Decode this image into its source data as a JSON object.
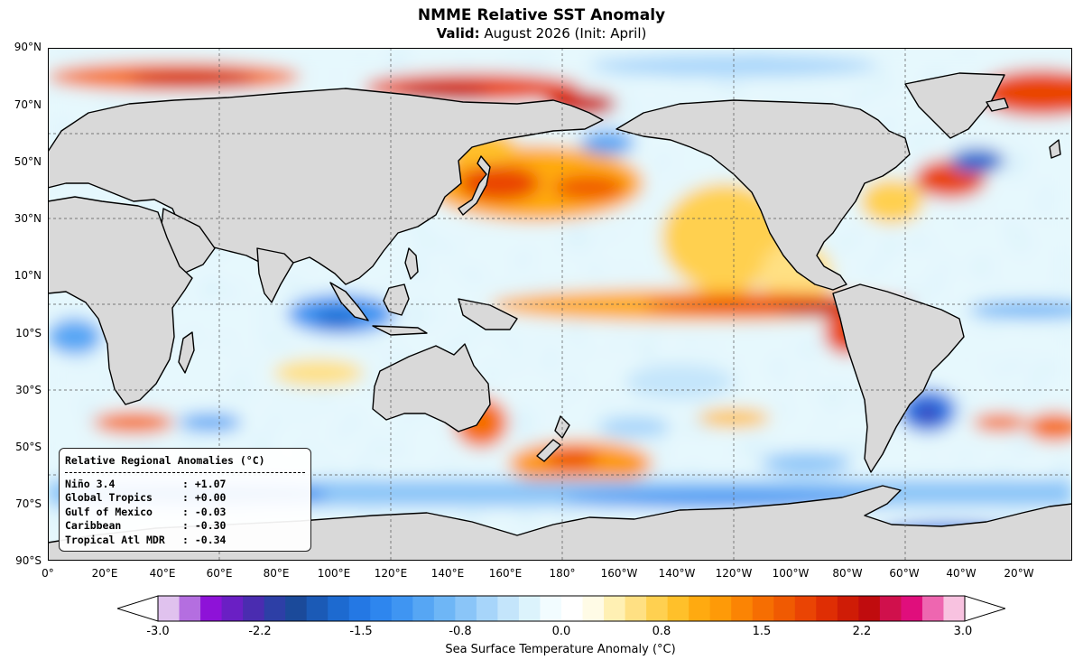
{
  "title": "NMME Relative SST Anomaly",
  "subtitle_label": "Valid:",
  "subtitle_text": "August 2026 (Init: April)",
  "y_ticks": [
    "90°N",
    "70°N",
    "50°N",
    "30°N",
    "10°N",
    "10°S",
    "30°S",
    "50°S",
    "70°S",
    "90°S"
  ],
  "x_ticks": [
    "0°",
    "20°E",
    "40°E",
    "60°E",
    "80°E",
    "100°E",
    "120°E",
    "140°E",
    "160°E",
    "180°",
    "160°W",
    "140°W",
    "120°W",
    "100°W",
    "80°W",
    "60°W",
    "40°W",
    "20°W"
  ],
  "regional": {
    "title": "Relative Regional Anomalies (°C)",
    "rows": [
      {
        "name": "Niño 3.4",
        "value": "+1.07"
      },
      {
        "name": "Global Tropics",
        "value": "+0.00"
      },
      {
        "name": "Gulf of Mexico",
        "value": "-0.03"
      },
      {
        "name": "Caribbean",
        "value": "-0.30"
      },
      {
        "name": "Tropical Atl MDR",
        "value": "-0.34"
      }
    ]
  },
  "colorbar": {
    "label": "Sea Surface Temperature Anomaly (°C)",
    "ticks": [
      "-3.0",
      "-2.2",
      "-1.5",
      "-0.8",
      "0.0",
      "0.8",
      "1.5",
      "2.2",
      "3.0"
    ],
    "colors": [
      "#e0c2ee",
      "#b46ee0",
      "#8e12d8",
      "#6a1fc4",
      "#4a2cb0",
      "#2d3fa6",
      "#1b4a9a",
      "#1b5ab6",
      "#1d6ad0",
      "#2478e4",
      "#2e86ee",
      "#3f95f2",
      "#56a6f4",
      "#6eb6f6",
      "#8ac5f8",
      "#a7d5fa",
      "#c4e5fb",
      "#dcf3fc",
      "#f2fcff",
      "#ffffff",
      "#fffbe6",
      "#fff0b3",
      "#ffe083",
      "#ffd050",
      "#ffc02a",
      "#ffaa10",
      "#fe9a08",
      "#fb8404",
      "#f66e02",
      "#f05a02",
      "#ea4404",
      "#df2e04",
      "#cf1c06",
      "#c00c0e",
      "#d0104c",
      "#e00e7c",
      "#ee66b0",
      "#f8c2e0"
    ]
  },
  "colors": {
    "land": "#d9d9d9",
    "ocean_neutral": "#e6f8fd"
  }
}
